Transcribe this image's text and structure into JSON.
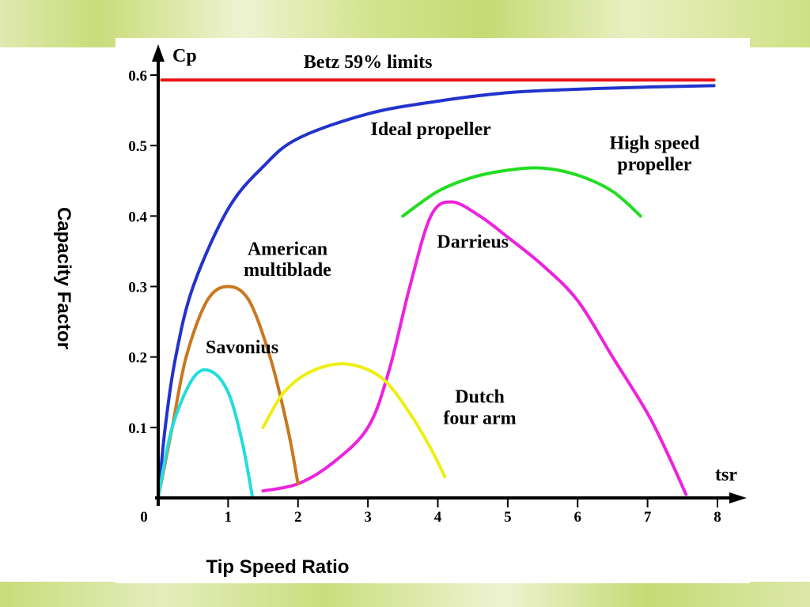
{
  "chart_data": {
    "type": "line",
    "xlabel": "Tip Speed Ratio",
    "ylabel": "Capacity Factor",
    "x_axis_name": "tsr",
    "y_axis_name": "Cp",
    "xlim": [
      0,
      8
    ],
    "ylim": [
      0,
      0.6
    ],
    "x_ticks": [
      "0",
      "1",
      "2",
      "3",
      "4",
      "5",
      "6",
      "7",
      "8"
    ],
    "y_ticks": [
      "0.1",
      "0.2",
      "0.3",
      "0.4",
      "0.5",
      "0.6"
    ],
    "grid": false,
    "series": [
      {
        "name": "Betz 59% limits",
        "color": "#e8141a",
        "points": [
          [
            0.05,
            0.593
          ],
          [
            7.95,
            0.593
          ]
        ]
      },
      {
        "name": "Ideal propeller",
        "color": "#2233cc",
        "points": [
          [
            0.0,
            0.0
          ],
          [
            0.1,
            0.1
          ],
          [
            0.25,
            0.2
          ],
          [
            0.5,
            0.3
          ],
          [
            1.0,
            0.41
          ],
          [
            1.5,
            0.47
          ],
          [
            2.0,
            0.51
          ],
          [
            3.0,
            0.545
          ],
          [
            4.0,
            0.563
          ],
          [
            5.0,
            0.575
          ],
          [
            6.0,
            0.58
          ],
          [
            7.0,
            0.583
          ],
          [
            7.95,
            0.585
          ]
        ]
      },
      {
        "name": "High speed propeller",
        "color": "#22dd22",
        "points": [
          [
            3.5,
            0.4
          ],
          [
            4.0,
            0.435
          ],
          [
            4.5,
            0.455
          ],
          [
            5.0,
            0.465
          ],
          [
            5.5,
            0.468
          ],
          [
            6.0,
            0.458
          ],
          [
            6.5,
            0.435
          ],
          [
            6.9,
            0.4
          ]
        ]
      },
      {
        "name": "Darrieus",
        "color": "#ee22dd",
        "points": [
          [
            1.5,
            0.01
          ],
          [
            2.0,
            0.02
          ],
          [
            2.5,
            0.05
          ],
          [
            3.0,
            0.1
          ],
          [
            3.3,
            0.18
          ],
          [
            3.6,
            0.3
          ],
          [
            3.9,
            0.4
          ],
          [
            4.2,
            0.42
          ],
          [
            4.6,
            0.4
          ],
          [
            5.0,
            0.37
          ],
          [
            5.5,
            0.33
          ],
          [
            6.0,
            0.28
          ],
          [
            6.5,
            0.2
          ],
          [
            7.0,
            0.12
          ],
          [
            7.3,
            0.06
          ],
          [
            7.55,
            0.005
          ]
        ]
      },
      {
        "name": "American multiblade",
        "color": "#c8781e",
        "points": [
          [
            0.0,
            0.0
          ],
          [
            0.2,
            0.1
          ],
          [
            0.4,
            0.2
          ],
          [
            0.7,
            0.28
          ],
          [
            1.0,
            0.3
          ],
          [
            1.3,
            0.28
          ],
          [
            1.6,
            0.2
          ],
          [
            1.85,
            0.1
          ],
          [
            2.0,
            0.02
          ]
        ]
      },
      {
        "name": "Savonius",
        "color": "#22dddd",
        "points": [
          [
            0.0,
            0.0
          ],
          [
            0.2,
            0.1
          ],
          [
            0.5,
            0.17
          ],
          [
            0.75,
            0.18
          ],
          [
            1.0,
            0.15
          ],
          [
            1.2,
            0.08
          ],
          [
            1.35,
            0.0
          ]
        ]
      },
      {
        "name": "Dutch four arm",
        "color": "#eeee11",
        "points": [
          [
            1.5,
            0.1
          ],
          [
            1.8,
            0.15
          ],
          [
            2.2,
            0.18
          ],
          [
            2.7,
            0.19
          ],
          [
            3.2,
            0.17
          ],
          [
            3.6,
            0.12
          ],
          [
            3.9,
            0.07
          ],
          [
            4.1,
            0.03
          ]
        ]
      }
    ],
    "annotations": [
      {
        "text": "Betz 59% limits",
        "x": 3.0,
        "y": 0.61
      },
      {
        "text": "Ideal propeller",
        "x": 3.9,
        "y": 0.515
      },
      {
        "text": "High speed",
        "x": 7.1,
        "y": 0.495
      },
      {
        "text": "propeller",
        "x": 7.1,
        "y": 0.465
      },
      {
        "text": "Darrieus",
        "x": 4.5,
        "y": 0.355
      },
      {
        "text": "American",
        "x": 1.85,
        "y": 0.345
      },
      {
        "text": "multiblade",
        "x": 1.85,
        "y": 0.315
      },
      {
        "text": "Savonius",
        "x": 1.2,
        "y": 0.205
      },
      {
        "text": "Dutch",
        "x": 4.6,
        "y": 0.135
      },
      {
        "text": "four arm",
        "x": 4.6,
        "y": 0.105
      }
    ]
  }
}
